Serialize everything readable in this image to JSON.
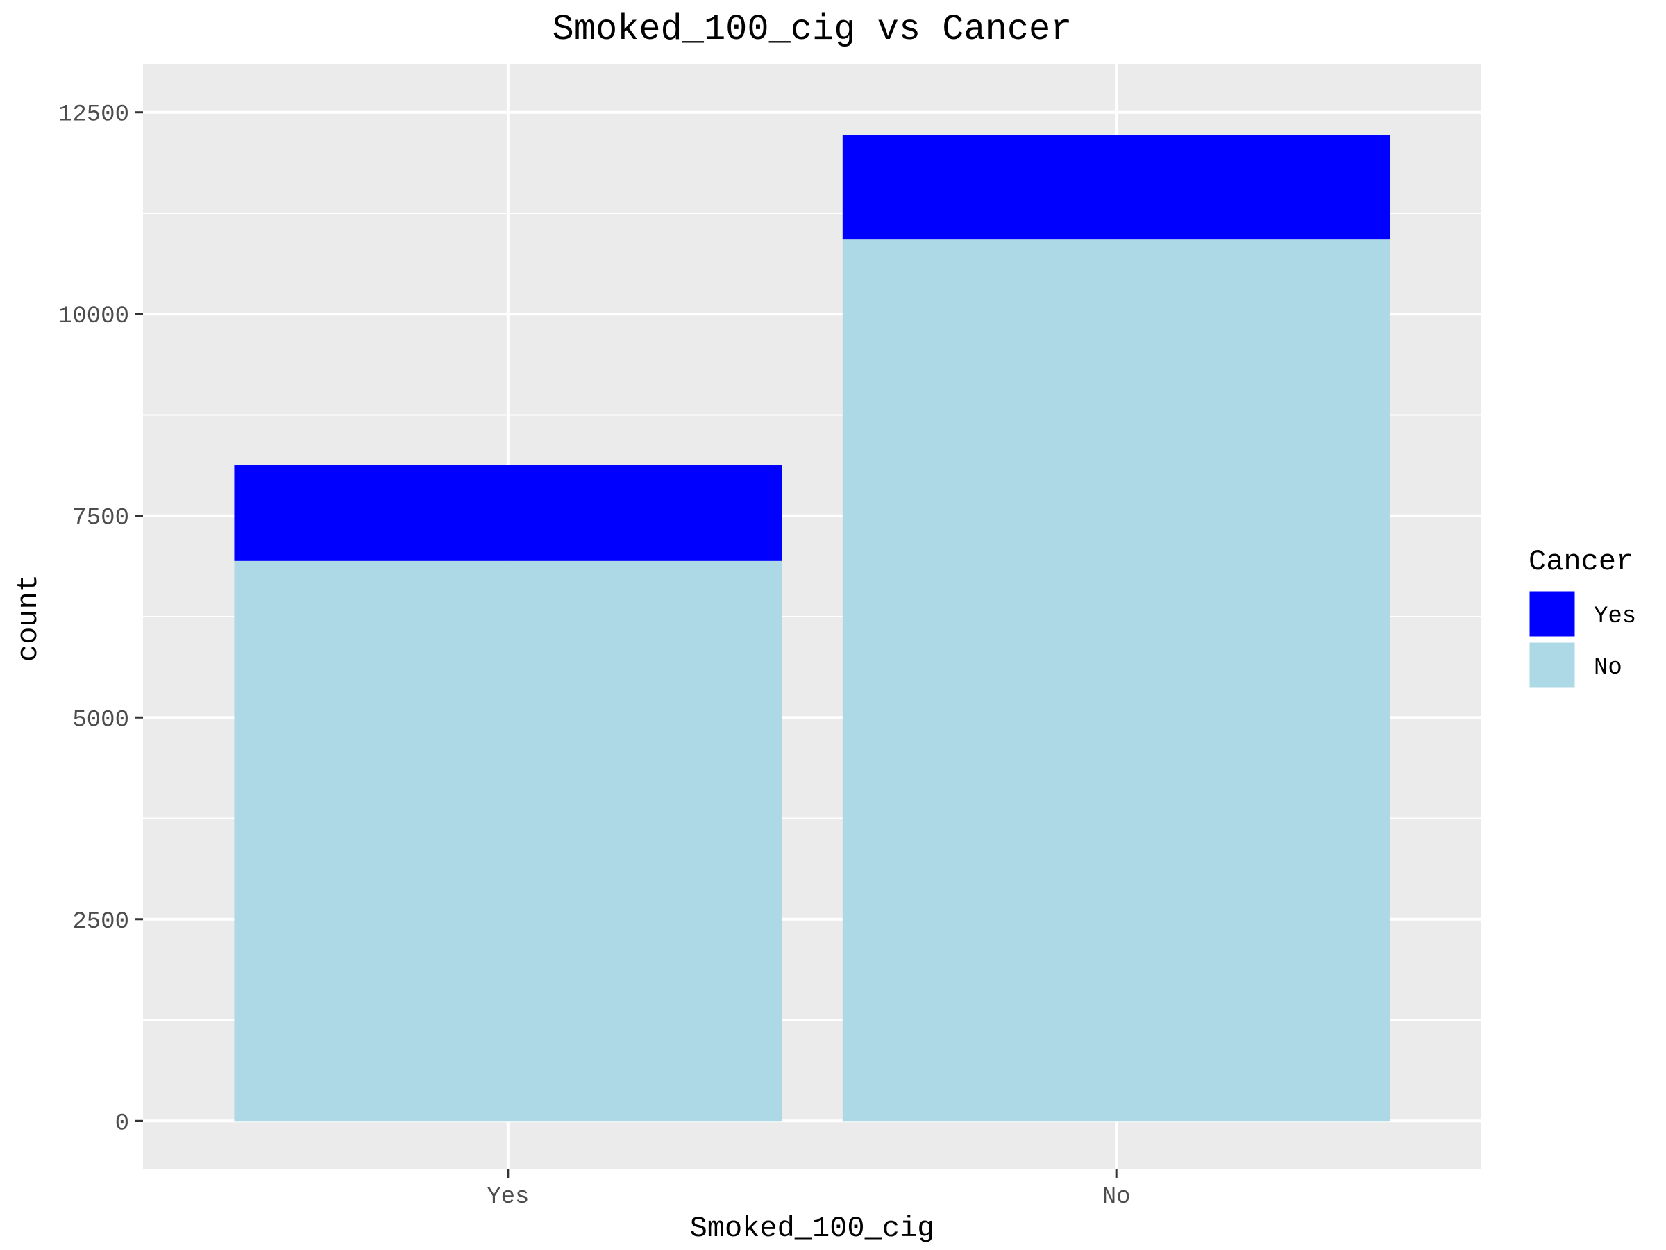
{
  "chart_data": {
    "type": "bar",
    "stacked": true,
    "title": "Smoked_100_cig vs Cancer",
    "xlabel": "Smoked_100_cig",
    "ylabel": "count",
    "categories": [
      "Yes",
      "No"
    ],
    "series": [
      {
        "name": "Yes",
        "color": "#0000ff",
        "values": [
          1190,
          1290
        ]
      },
      {
        "name": "No",
        "color": "#add8e6",
        "values": [
          6940,
          10930
        ]
      }
    ],
    "ylim": [
      -600,
      13100
    ],
    "yticks": [
      0,
      2500,
      5000,
      7500,
      10000,
      12500
    ],
    "grid": true,
    "legend": {
      "title": "Cancer",
      "position": "right"
    },
    "colors": {
      "panel": "#ebebeb",
      "grid": "#ffffff",
      "tick": "#333333"
    }
  }
}
